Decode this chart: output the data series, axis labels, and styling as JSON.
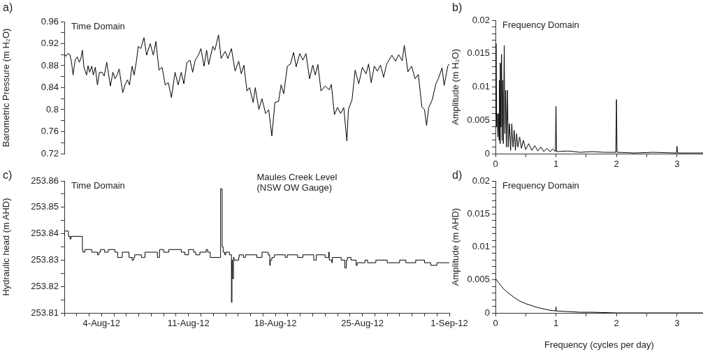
{
  "chart_data": [
    {
      "type": "line",
      "ylabel": "Barometric Pressure (m H₂O)",
      "annotations": [
        "a)",
        "Time Domain"
      ],
      "color": "#000000",
      "tick_labels": "y",
      "xlim": [
        "--08-01",
        "--09-01"
      ],
      "ylim": [
        0.72,
        0.96
      ],
      "yticks": [
        0.72,
        {
          "value": 0.74,
          "label": null
        },
        0.76,
        {
          "value": 0.78,
          "label": null
        },
        0.8,
        {
          "value": 0.82,
          "label": null
        },
        0.84,
        {
          "value": 0.86,
          "label": null
        },
        0.88,
        {
          "value": 0.9,
          "label": null
        },
        0.92,
        {
          "value": 0.94,
          "label": null
        },
        0.96
      ],
      "x": [
        "--08-01T00:00",
        "--08-01T03:00",
        "--08-01T07:00",
        "--08-01T11:00",
        "--08-01T14:00",
        "--08-01T17:00",
        "--08-01T21:00",
        "--08-02T01:00",
        "--08-02T05:00",
        "--08-02T08:00",
        "--08-02T11:00",
        "--08-02T14:00",
        "--08-02T19:00",
        "--08-02T22:00",
        "--08-03T01:00",
        "--08-03T05:00",
        "--08-03T08:00",
        "--08-03T12:00",
        "--08-03T16:00",
        "--08-03T20:00",
        "--08-04T01:00",
        "--08-04T05:00",
        "--08-04T10:00",
        "--08-04T12:00",
        "--08-04T17:00",
        "--08-04T22:00",
        "--08-05T02:00",
        "--08-05T06:00",
        "--08-05T10:00",
        "--08-05T14:00",
        "--08-05T17:00",
        "--08-05T22:00",
        "--08-06T02:00",
        "--08-06T06:00",
        "--08-06T11:00",
        "--08-06T15:00",
        "--08-06T19:00",
        "--08-06T23:00",
        "--08-07T04:00",
        "--08-07T10:00",
        "--08-07T15:00",
        "--08-07T22:00",
        "--08-08T04:00",
        "--08-08T09:00",
        "--08-08T15:00",
        "--08-08T21:00",
        "--08-09T03:00",
        "--08-09T09:00",
        "--08-09T15:00",
        "--08-09T22:00",
        "--08-10T04:00",
        "--08-10T10:00",
        "--08-10T15:00",
        "--08-10T21:00",
        "--08-11T03:00",
        "--08-11T08:00",
        "--08-11T13:00",
        "--08-11T19:00",
        "--08-12T00:00",
        "--08-12T06:00",
        "--08-12T11:00",
        "--08-12T15:00",
        "--08-12T23:00",
        "--08-13T03:00",
        "--08-13T10:00",
        "--08-13T15:00",
        "--08-13T23:00",
        "--08-14T04:00",
        "--08-14T11:00",
        "--08-14T18:00",
        "--08-15T01:00",
        "--08-15T06:00",
        "--08-15T11:00",
        "--08-15T17:00",
        "--08-15T22:00",
        "--08-16T05:00",
        "--08-16T09:00",
        "--08-16T16:00",
        "--08-16T22:00",
        "--08-17T05:00",
        "--08-17T11:00",
        "--08-17T17:00",
        "--08-17T23:00",
        "--08-18T06:00",
        "--08-18T11:00",
        "--08-18T16:00",
        "--08-18T23:00",
        "--08-19T05:00",
        "--08-19T11:00",
        "--08-19T16:00",
        "--08-19T23:00",
        "--08-20T05:00",
        "--08-20T11:00",
        "--08-20T18:00",
        "--08-21T00:00",
        "--08-21T05:00",
        "--08-21T10:00",
        "--08-21T16:00",
        "--08-22T00:00",
        "--08-22T08:00",
        "--08-22T12:00",
        "--08-22T18:00",
        "--08-23T00:00",
        "--08-23T06:00",
        "--08-23T12:00",
        "--08-23T18:00",
        "--08-23T21:00",
        "--08-24T04:00",
        "--08-24T10:00",
        "--08-24T17:00",
        "--08-25T00:00",
        "--08-25T07:00",
        "--08-25T12:00",
        "--08-25T17:00",
        "--08-25T23:00",
        "--08-26T05:00",
        "--08-26T11:00",
        "--08-26T17:00",
        "--08-26T23:00",
        "--08-27T09:00",
        "--08-27T16:00",
        "--08-27T22:00",
        "--08-28T05:00",
        "--08-28T09:00",
        "--08-28T16:00",
        "--08-28T23:00",
        "--08-29T06:00",
        "--08-29T12:00",
        "--08-29T19:00",
        "--08-30T00:00",
        "--08-30T04:00",
        "--08-30T08:00",
        "--08-30T15:00",
        "--08-30T22:00",
        "--08-31T03:00",
        "--08-31T10:00",
        "--08-31T14:00",
        "--08-31T21:00",
        "--09-01T00:00"
      ],
      "values": [
        0.901,
        0.897,
        0.902,
        0.9,
        0.886,
        0.863,
        0.89,
        0.896,
        0.886,
        0.893,
        0.908,
        0.877,
        0.863,
        0.88,
        0.868,
        0.879,
        0.863,
        0.877,
        0.845,
        0.868,
        0.868,
        0.861,
        0.886,
        0.874,
        0.843,
        0.868,
        0.856,
        0.863,
        0.874,
        0.849,
        0.831,
        0.847,
        0.854,
        0.845,
        0.879,
        0.863,
        0.886,
        0.915,
        0.911,
        0.931,
        0.899,
        0.92,
        0.899,
        0.924,
        0.872,
        0.877,
        0.845,
        0.849,
        0.822,
        0.868,
        0.845,
        0.868,
        0.847,
        0.886,
        0.89,
        0.868,
        0.89,
        0.899,
        0.911,
        0.879,
        0.908,
        0.882,
        0.915,
        0.908,
        0.936,
        0.893,
        0.906,
        0.893,
        0.911,
        0.87,
        0.888,
        0.865,
        0.881,
        0.834,
        0.84,
        0.813,
        0.84,
        0.8,
        0.82,
        0.793,
        0.8,
        0.752,
        0.813,
        0.815,
        0.845,
        0.829,
        0.879,
        0.883,
        0.904,
        0.878,
        0.902,
        0.89,
        0.902,
        0.856,
        0.881,
        0.863,
        0.882,
        0.834,
        0.843,
        0.836,
        0.846,
        0.791,
        0.804,
        0.793,
        0.804,
        0.743,
        0.8,
        0.818,
        0.872,
        0.847,
        0.877,
        0.865,
        0.883,
        0.849,
        0.879,
        0.87,
        0.881,
        0.859,
        0.883,
        0.899,
        0.888,
        0.9,
        0.889,
        0.917,
        0.869,
        0.879,
        0.856,
        0.864,
        0.805,
        0.8,
        0.771,
        0.803,
        0.818,
        0.847,
        0.857,
        0.876,
        0.844,
        0.879,
        0.883
      ]
    },
    {
      "type": "line",
      "ylabel": "Amplitude (m H₂O)",
      "annotations": [
        "b)",
        "Frequency Domain"
      ],
      "color": "#000000",
      "xlim": [
        0,
        3.43
      ],
      "xticks": [
        0,
        {
          "value": 0.5,
          "label": null
        },
        1,
        {
          "value": 1.5,
          "label": null
        },
        2,
        {
          "value": 2.5,
          "label": null
        },
        3
      ],
      "ylim": [
        0,
        0.02
      ],
      "yticks": [
        0,
        {
          "value": 0.001,
          "label": null
        },
        {
          "value": 0.002,
          "label": null
        },
        {
          "value": 0.003,
          "label": null
        },
        {
          "value": 0.004,
          "label": null
        },
        0.005,
        {
          "value": 0.006,
          "label": null
        },
        {
          "value": 0.007,
          "label": null
        },
        {
          "value": 0.008,
          "label": null
        },
        {
          "value": 0.009,
          "label": null
        },
        0.01,
        {
          "value": 0.011,
          "label": null
        },
        {
          "value": 0.012,
          "label": null
        },
        {
          "value": 0.013,
          "label": null
        },
        {
          "value": 0.014,
          "label": null
        },
        0.015,
        {
          "value": 0.016,
          "label": null
        },
        {
          "value": 0.017,
          "label": null
        },
        {
          "value": 0.018,
          "label": null
        },
        {
          "value": 0.019,
          "label": null
        },
        0.02
      ],
      "x": [
        0,
        0.01,
        0.02,
        0.03,
        0.04,
        0.05,
        0.06,
        0.065,
        0.075,
        0.08,
        0.09,
        0.1,
        0.11,
        0.12,
        0.13,
        0.145,
        0.155,
        0.17,
        0.18,
        0.2,
        0.21,
        0.23,
        0.25,
        0.27,
        0.29,
        0.31,
        0.33,
        0.35,
        0.37,
        0.4,
        0.43,
        0.46,
        0.5,
        0.55,
        0.6,
        0.65,
        0.7,
        0.75,
        0.8,
        0.85,
        0.9,
        0.95,
        0.99,
        1,
        1.01,
        1.2,
        1.4,
        1.6,
        1.8,
        1.99,
        2,
        2.01,
        2.3,
        2.6,
        2.99,
        3,
        3.01,
        3.2,
        3.43
      ],
      "values": [
        0.0058,
        0.0165,
        0.004,
        0.006,
        0.0025,
        0.006,
        0.002,
        0.011,
        0.0015,
        0.0136,
        0.004,
        0.0149,
        0.002,
        0.011,
        0.0015,
        0.0162,
        0.003,
        0.0095,
        0.001,
        0.0095,
        0.001,
        0.0045,
        0.0005,
        0.0045,
        0.001,
        0.0035,
        0.0005,
        0.003,
        0.001,
        0.0025,
        0.0008,
        0.002,
        0.0006,
        0.0015,
        0.0005,
        0.0012,
        0.0004,
        0.001,
        0.0003,
        0.0008,
        0.0003,
        0.0007,
        0.0003,
        0.0071,
        0.0003,
        0.0004,
        0.0002,
        0.0003,
        0.0002,
        0.0002,
        0.0081,
        0.0002,
        0.0001,
        0.0002,
        0.0001,
        0.0011,
        0.0001,
        0.0001,
        0.0001
      ]
    },
    {
      "type": "step",
      "ylabel": "Hydraulic head (m AHD)",
      "annotations": [
        "c)",
        "Time Domain",
        "Maules Creek Level\n(NSW OW Gauge)"
      ],
      "color": "#000000",
      "xlim": [
        "--08-01",
        "--09-01"
      ],
      "xticks": [
        {
          "value": "--08-01",
          "label": null
        },
        {
          "value": "--08-02",
          "label": null
        },
        {
          "value": "--08-03",
          "label": null
        },
        {
          "value": "--08-04",
          "label": "4-Aug-12"
        },
        {
          "value": "--08-05",
          "label": null
        },
        {
          "value": "--08-06",
          "label": null
        },
        {
          "value": "--08-07",
          "label": null
        },
        {
          "value": "--08-08",
          "label": null
        },
        {
          "value": "--08-09",
          "label": null
        },
        {
          "value": "--08-10",
          "label": null
        },
        {
          "value": "--08-11",
          "label": "11-Aug-12"
        },
        {
          "value": "--08-12",
          "label": null
        },
        {
          "value": "--08-13",
          "label": null
        },
        {
          "value": "--08-14",
          "label": null
        },
        {
          "value": "--08-15",
          "label": null
        },
        {
          "value": "--08-16",
          "label": null
        },
        {
          "value": "--08-17",
          "label": null
        },
        {
          "value": "--08-18",
          "label": "18-Aug-12"
        },
        {
          "value": "--08-19",
          "label": null
        },
        {
          "value": "--08-20",
          "label": null
        },
        {
          "value": "--08-21",
          "label": null
        },
        {
          "value": "--08-22",
          "label": null
        },
        {
          "value": "--08-23",
          "label": null
        },
        {
          "value": "--08-24",
          "label": null
        },
        {
          "value": "--08-25",
          "label": "25-Aug-12"
        },
        {
          "value": "--08-26",
          "label": null
        },
        {
          "value": "--08-27",
          "label": null
        },
        {
          "value": "--08-28",
          "label": null
        },
        {
          "value": "--08-29",
          "label": null
        },
        {
          "value": "--08-30",
          "label": null
        },
        {
          "value": "--08-31",
          "label": null
        },
        {
          "value": "--09-01",
          "label": "1-Sep-12"
        }
      ],
      "ylim": [
        253.81,
        253.86
      ],
      "yticks": [
        253.81,
        {
          "value": 253.815,
          "label": null
        },
        253.82,
        {
          "value": 253.825,
          "label": null
        },
        253.83,
        {
          "value": 253.835,
          "label": null
        },
        253.84,
        {
          "value": 253.845,
          "label": null
        },
        253.85,
        {
          "value": 253.855,
          "label": null
        },
        253.86
      ],
      "x": [
        "--08-01T00:00",
        "--08-01T08:00",
        "--08-01T11:00",
        "--08-01T13:00",
        "--08-02T11:00",
        "--08-02T12:00",
        "--08-02T16:00",
        "--08-03T05:00",
        "--08-03T16:00",
        "--08-03T19:00",
        "--08-03T22:00",
        "--08-04T06:00",
        "--08-04T13:00",
        "--08-05T02:00",
        "--08-05T07:00",
        "--08-05T16:00",
        "--08-06T05:00",
        "--08-06T11:00",
        "--08-06T14:00",
        "--08-06T16:00",
        "--08-07T05:00",
        "--08-07T12:00",
        "--08-08T12:00",
        "--08-08T16:00",
        "--08-09T00:00",
        "--08-09T10:00",
        "--08-10T10:00",
        "--08-10T17:00",
        "--08-11T00:00",
        "--08-11T10:00",
        "--08-11T14:00",
        "--08-11T22:00",
        "--08-12T10:00",
        "--08-12T13:00",
        "--08-12T18:00",
        "--08-13T14:00",
        "--08-13T17:00",
        "--08-13T19:00",
        "--08-13T22:00",
        "--08-14T00:00",
        "--08-14T07:00",
        "--08-14T11:00",
        "--08-14T12:00",
        "--08-14T13:00",
        "--08-14T15:00",
        "--08-14T16:00",
        "--08-15T01:00",
        "--08-15T02:00",
        "--08-15T10:00",
        "--08-15T14:00",
        "--08-16T12:00",
        "--08-16T22:00",
        "--08-17T10:00",
        "--08-17T13:00",
        "--08-17T14:00",
        "--08-17T17:00",
        "--08-17T22:00",
        "--08-18T19:00",
        "--08-18T23:00",
        "--08-19T19:00",
        "--08-20T05:00",
        "--08-21T02:00",
        "--08-21T07:00",
        "--08-22T00:00",
        "--08-22T07:00",
        "--08-22T08:00",
        "--08-22T13:00",
        "--08-22T14:00",
        "--08-23T07:00",
        "--08-23T14:00",
        "--08-23T17:00",
        "--08-23T19:00",
        "--08-24T02:00",
        "--08-24T12:00",
        "--08-24T14:00",
        "--08-25T05:00",
        "--08-25T10:00",
        "--08-26T02:00",
        "--08-26T08:00",
        "--08-27T00:00",
        "--08-28T00:00",
        "--08-28T12:00",
        "--08-29T07:00",
        "--08-30T00:00",
        "--08-30T12:00",
        "--08-31T00:00",
        "--08-31T14:00",
        "--09-01T00:00"
      ],
      "values": [
        253.839,
        253.841,
        253.839,
        253.838,
        253.839,
        253.834,
        253.833,
        253.834,
        253.833,
        253.832,
        253.833,
        253.834,
        253.833,
        253.834,
        253.833,
        253.831,
        253.833,
        253.831,
        253.83,
        253.831,
        253.832,
        253.831,
        253.833,
        253.831,
        253.834,
        253.833,
        253.834,
        253.833,
        253.832,
        253.834,
        253.833,
        253.832,
        253.833,
        253.834,
        253.833,
        253.831,
        253.857,
        253.835,
        253.833,
        253.832,
        253.833,
        253.832,
        253.814,
        253.83,
        253.823,
        253.831,
        253.83,
        253.831,
        253.832,
        253.831,
        253.832,
        253.831,
        253.833,
        253.832,
        253.828,
        253.83,
        253.831,
        253.832,
        253.831,
        253.832,
        253.831,
        253.832,
        253.83,
        253.832,
        253.831,
        253.833,
        253.83,
        253.829,
        253.831,
        253.83,
        253.827,
        253.83,
        253.831,
        253.83,
        253.828,
        253.829,
        253.83,
        253.829,
        253.83,
        253.83,
        253.829,
        253.83,
        253.829,
        253.83,
        253.829,
        253.828,
        253.829,
        253.829
      ]
    },
    {
      "type": "line",
      "xlabel": "Frequency (cycles per day)",
      "ylabel": "Amplitude (m AHD)",
      "annotations": [
        "d)",
        "Frequency Domain"
      ],
      "color": "#000000",
      "xlim": [
        0,
        3.43
      ],
      "xticks": [
        0,
        {
          "value": 0.5,
          "label": null
        },
        1,
        {
          "value": 1.5,
          "label": null
        },
        2,
        {
          "value": 2.5,
          "label": null
        },
        3
      ],
      "ylim": [
        0,
        0.02
      ],
      "yticks": [
        0,
        {
          "value": 0.001,
          "label": null
        },
        {
          "value": 0.002,
          "label": null
        },
        {
          "value": 0.003,
          "label": null
        },
        {
          "value": 0.004,
          "label": null
        },
        0.005,
        {
          "value": 0.006,
          "label": null
        },
        {
          "value": 0.007,
          "label": null
        },
        {
          "value": 0.008,
          "label": null
        },
        {
          "value": 0.009,
          "label": null
        },
        0.01,
        {
          "value": 0.011,
          "label": null
        },
        {
          "value": 0.012,
          "label": null
        },
        {
          "value": 0.013,
          "label": null
        },
        {
          "value": 0.014,
          "label": null
        },
        0.015,
        {
          "value": 0.016,
          "label": null
        },
        {
          "value": 0.017,
          "label": null
        },
        {
          "value": 0.018,
          "label": null
        },
        {
          "value": 0.019,
          "label": null
        },
        0.02
      ],
      "x": [
        0,
        0.02,
        0.05,
        0.1,
        0.15,
        0.2,
        0.3,
        0.4,
        0.5,
        0.6,
        0.7,
        0.8,
        0.9,
        0.995,
        1,
        1.005,
        1.2,
        1.4,
        1.6,
        2,
        2.5,
        3.43
      ],
      "values": [
        0.0052,
        0.005,
        0.0046,
        0.004,
        0.0035,
        0.0031,
        0.0024,
        0.0018,
        0.0014,
        0.0011,
        0.0008,
        0.0006,
        0.0004,
        0.0003,
        0.0009,
        0.0003,
        0.0002,
        0.0001,
        0.0001,
        0,
        0,
        0
      ]
    }
  ]
}
